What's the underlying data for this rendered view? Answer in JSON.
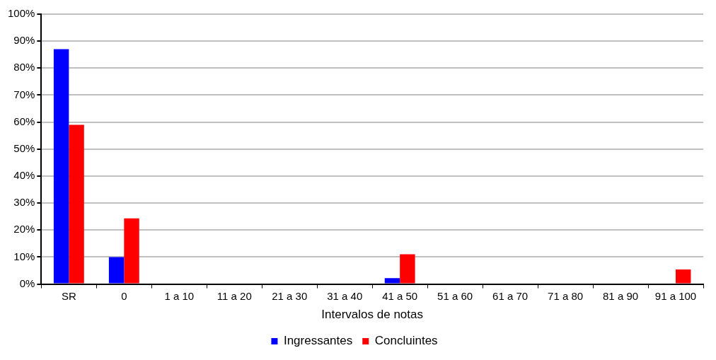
{
  "chart_data": {
    "type": "bar",
    "xlabel": "Intervalos de notas",
    "categories": [
      "SR",
      "0",
      "1 a 10",
      "11 a 20",
      "21 a 30",
      "31 a 40",
      "41 a 50",
      "51 a 60",
      "61 a 70",
      "71 a 80",
      "81 a 90",
      "91 a 100"
    ],
    "series": [
      {
        "name": "Ingressantes",
        "color": "#0000ff",
        "values": [
          87,
          10,
          0,
          0,
          0,
          0,
          2.2,
          0,
          0,
          0,
          0,
          null
        ]
      },
      {
        "name": "Concluintes",
        "color": "#ff0000",
        "values": [
          59,
          24.3,
          0,
          0,
          0,
          0,
          11,
          0,
          0,
          0,
          0,
          5.4
        ]
      }
    ],
    "ylim": [
      0,
      100
    ],
    "yticks": [
      {
        "value": 0,
        "label": "0%"
      },
      {
        "value": 10,
        "label": "10%"
      },
      {
        "value": 20,
        "label": "20%"
      },
      {
        "value": 30,
        "label": "30%"
      },
      {
        "value": 40,
        "label": "40%"
      },
      {
        "value": 50,
        "label": "50%"
      },
      {
        "value": 60,
        "label": "60%"
      },
      {
        "value": 70,
        "label": "70%"
      },
      {
        "value": 80,
        "label": "80%"
      },
      {
        "value": 90,
        "label": "90%"
      },
      {
        "value": 100,
        "label": "100%"
      }
    ],
    "grid": "y",
    "legend": "bottom"
  }
}
